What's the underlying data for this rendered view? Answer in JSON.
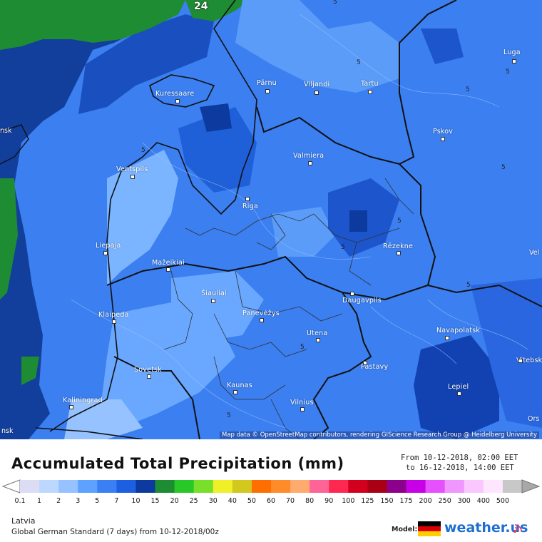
{
  "map": {
    "timestep_label": "24",
    "attribution": "Map data © OpenStreetMap contributors, rendering GIScience Research Group @ Heidelberg University",
    "edge_labels": {
      "left_nsk": "nsk",
      "right_vel": "Vel",
      "right_orsha": "Ors"
    },
    "cities": [
      {
        "name": "Luga"
      },
      {
        "name": "Pärnu"
      },
      {
        "name": "Viljandi"
      },
      {
        "name": "Tartu"
      },
      {
        "name": "Kuressaare"
      },
      {
        "name": "Pskov"
      },
      {
        "name": "Valmiera"
      },
      {
        "name": "Ventspils"
      },
      {
        "name": "Riga"
      },
      {
        "name": "Liepaja"
      },
      {
        "name": "Rēzekne"
      },
      {
        "name": "Mažeikiai"
      },
      {
        "name": "Šiauliai"
      },
      {
        "name": "Klaipeda"
      },
      {
        "name": "Panevėžys"
      },
      {
        "name": "Daugavpils"
      },
      {
        "name": "Navapolatsk"
      },
      {
        "name": "Utena"
      },
      {
        "name": "Vitebsk"
      },
      {
        "name": "Sovetsk"
      },
      {
        "name": "Pastavy"
      },
      {
        "name": "Kaunas"
      },
      {
        "name": "Lepiel"
      },
      {
        "name": "Kaliningrad"
      },
      {
        "name": "Vilnius"
      }
    ],
    "contour_value": "5"
  },
  "legend": {
    "title": "Accumulated Total Precipitation (mm)",
    "date_from": "From 10-12-2018, 02:00 EET",
    "date_to": "to 16-12-2018, 14:00 EET",
    "scale_values": [
      "0.1",
      "1",
      "2",
      "3",
      "5",
      "7",
      "10",
      "15",
      "20",
      "25",
      "30",
      "40",
      "50",
      "60",
      "70",
      "80",
      "90",
      "100",
      "125",
      "150",
      "175",
      "200",
      "250",
      "300",
      "400",
      "500"
    ],
    "scale_colors": [
      "#dcdcf5",
      "#bcd8ff",
      "#96c2ff",
      "#5ea2ff",
      "#3a80f4",
      "#1c5fe0",
      "#0c3a9e",
      "#1e8c32",
      "#28c828",
      "#78e028",
      "#f0f028",
      "#d2c81e",
      "#ff6e00",
      "#ff8c28",
      "#ffaa6e",
      "#ff6496",
      "#ff2850",
      "#d2001e",
      "#aa0014",
      "#8c008c",
      "#c800e6",
      "#e650ff",
      "#f096ff",
      "#fac8ff",
      "#ffe6ff",
      "#c8c8c8"
    ],
    "region": "Latvia",
    "model_info": "Global German Standard (7 days) from 10-12-2018/00z",
    "model_label": "Model:",
    "brand": "weather.us"
  }
}
